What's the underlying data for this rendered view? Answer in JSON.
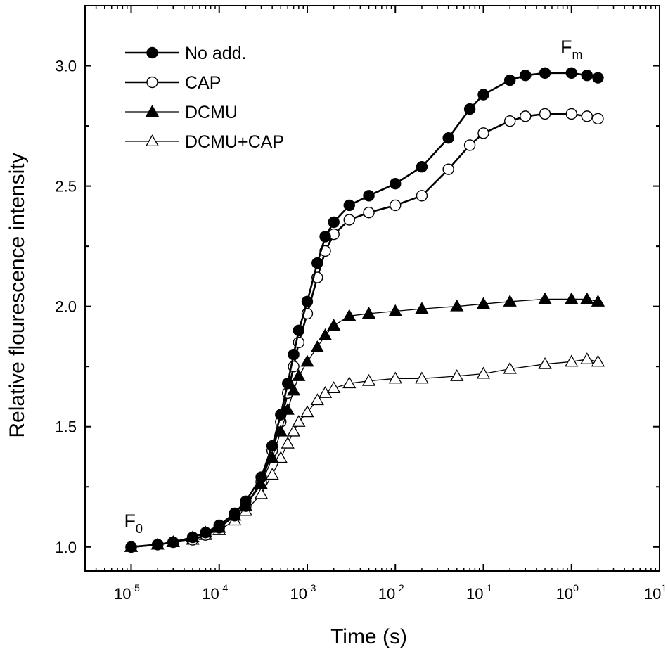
{
  "chart_data": {
    "type": "scatter",
    "title": "",
    "xlabel": "Time (s)",
    "ylabel": "Relative flourescence intensity",
    "xscale": "log",
    "xlim": [
      3e-06,
      10
    ],
    "ylim": [
      0.9,
      3.25
    ],
    "x_ticks": [
      {
        "value": 1e-05,
        "base": "10",
        "exp": "-5"
      },
      {
        "value": 0.0001,
        "base": "10",
        "exp": "-4"
      },
      {
        "value": 0.001,
        "base": "10",
        "exp": "-3"
      },
      {
        "value": 0.01,
        "base": "10",
        "exp": "-2"
      },
      {
        "value": 0.1,
        "base": "10",
        "exp": "-1"
      },
      {
        "value": 1,
        "base": "10",
        "exp": "0"
      },
      {
        "value": 10,
        "base": "10",
        "exp": "1"
      }
    ],
    "y_ticks": [
      {
        "value": 1.0,
        "label": "1.0"
      },
      {
        "value": 1.5,
        "label": "1.5"
      },
      {
        "value": 2.0,
        "label": "2.0"
      },
      {
        "value": 2.5,
        "label": "2.5"
      },
      {
        "value": 3.0,
        "label": "3.0"
      }
    ],
    "legend_position": "top-left",
    "annotations": [
      {
        "text": "F",
        "sub": "0",
        "x": 1e-05,
        "y": 1.0,
        "anchor": "above-point"
      },
      {
        "text": "F",
        "sub": "m",
        "x": 0.9,
        "y": 2.97,
        "anchor": "above-point"
      }
    ],
    "series": [
      {
        "name": "No add.",
        "marker": "circle",
        "filled": true,
        "line": "thick",
        "x": [
          1e-05,
          2e-05,
          3e-05,
          5e-05,
          7e-05,
          0.0001,
          0.00015,
          0.0002,
          0.0003,
          0.0004,
          0.0005,
          0.0006,
          0.0007,
          0.0008,
          0.001,
          0.0013,
          0.0016,
          0.002,
          0.003,
          0.005,
          0.01,
          0.02,
          0.04,
          0.07,
          0.1,
          0.2,
          0.3,
          0.5,
          1,
          1.5,
          2
        ],
        "y": [
          1.0,
          1.01,
          1.02,
          1.04,
          1.06,
          1.09,
          1.14,
          1.19,
          1.29,
          1.42,
          1.55,
          1.68,
          1.8,
          1.9,
          2.02,
          2.18,
          2.29,
          2.35,
          2.42,
          2.46,
          2.51,
          2.58,
          2.7,
          2.82,
          2.88,
          2.94,
          2.96,
          2.97,
          2.97,
          2.96,
          2.95
        ]
      },
      {
        "name": "CAP",
        "marker": "circle",
        "filled": false,
        "line": "thick",
        "x": [
          1e-05,
          2e-05,
          3e-05,
          5e-05,
          7e-05,
          0.0001,
          0.00015,
          0.0002,
          0.0003,
          0.0004,
          0.0005,
          0.0006,
          0.0007,
          0.0008,
          0.001,
          0.0013,
          0.0016,
          0.002,
          0.003,
          0.005,
          0.01,
          0.02,
          0.04,
          0.07,
          0.1,
          0.2,
          0.3,
          0.5,
          1,
          1.5,
          2
        ],
        "y": [
          1.0,
          1.01,
          1.02,
          1.03,
          1.05,
          1.08,
          1.13,
          1.17,
          1.27,
          1.4,
          1.52,
          1.64,
          1.75,
          1.85,
          1.97,
          2.12,
          2.23,
          2.3,
          2.36,
          2.39,
          2.42,
          2.46,
          2.57,
          2.67,
          2.72,
          2.77,
          2.79,
          2.8,
          2.8,
          2.79,
          2.78
        ]
      },
      {
        "name": "DCMU",
        "marker": "triangle",
        "filled": true,
        "line": "thin",
        "x": [
          1e-05,
          2e-05,
          3e-05,
          5e-05,
          7e-05,
          0.0001,
          0.00015,
          0.0002,
          0.0003,
          0.0004,
          0.0005,
          0.0006,
          0.0007,
          0.0008,
          0.001,
          0.0013,
          0.0016,
          0.002,
          0.003,
          0.005,
          0.01,
          0.02,
          0.05,
          0.1,
          0.2,
          0.5,
          1,
          1.5,
          2
        ],
        "y": [
          1.0,
          1.01,
          1.02,
          1.04,
          1.06,
          1.08,
          1.13,
          1.17,
          1.26,
          1.37,
          1.48,
          1.57,
          1.65,
          1.71,
          1.77,
          1.83,
          1.88,
          1.92,
          1.96,
          1.97,
          1.98,
          1.99,
          2.0,
          2.01,
          2.02,
          2.03,
          2.03,
          2.03,
          2.02
        ]
      },
      {
        "name": "DCMU+CAP",
        "marker": "triangle",
        "filled": false,
        "line": "thin",
        "x": [
          1e-05,
          2e-05,
          3e-05,
          5e-05,
          7e-05,
          0.0001,
          0.00015,
          0.0002,
          0.0003,
          0.0004,
          0.0005,
          0.0006,
          0.0007,
          0.0008,
          0.001,
          0.0013,
          0.0016,
          0.002,
          0.003,
          0.005,
          0.01,
          0.02,
          0.05,
          0.1,
          0.2,
          0.5,
          1,
          1.5,
          2
        ],
        "y": [
          1.0,
          1.01,
          1.02,
          1.03,
          1.05,
          1.07,
          1.11,
          1.15,
          1.22,
          1.3,
          1.37,
          1.43,
          1.48,
          1.52,
          1.56,
          1.61,
          1.64,
          1.66,
          1.68,
          1.69,
          1.7,
          1.7,
          1.71,
          1.72,
          1.74,
          1.76,
          1.77,
          1.78,
          1.77
        ]
      }
    ]
  }
}
